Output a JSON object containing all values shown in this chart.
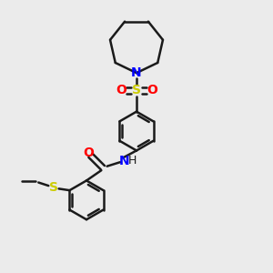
{
  "bg_color": "#ebebeb",
  "bond_color": "#1a1a1a",
  "N_color": "#0000ff",
  "O_color": "#ff0000",
  "S_color": "#cccc00",
  "lw": 1.8,
  "figsize": [
    3.0,
    3.0
  ],
  "dpi": 100,
  "xlim": [
    0,
    10
  ],
  "ylim": [
    0,
    10
  ]
}
